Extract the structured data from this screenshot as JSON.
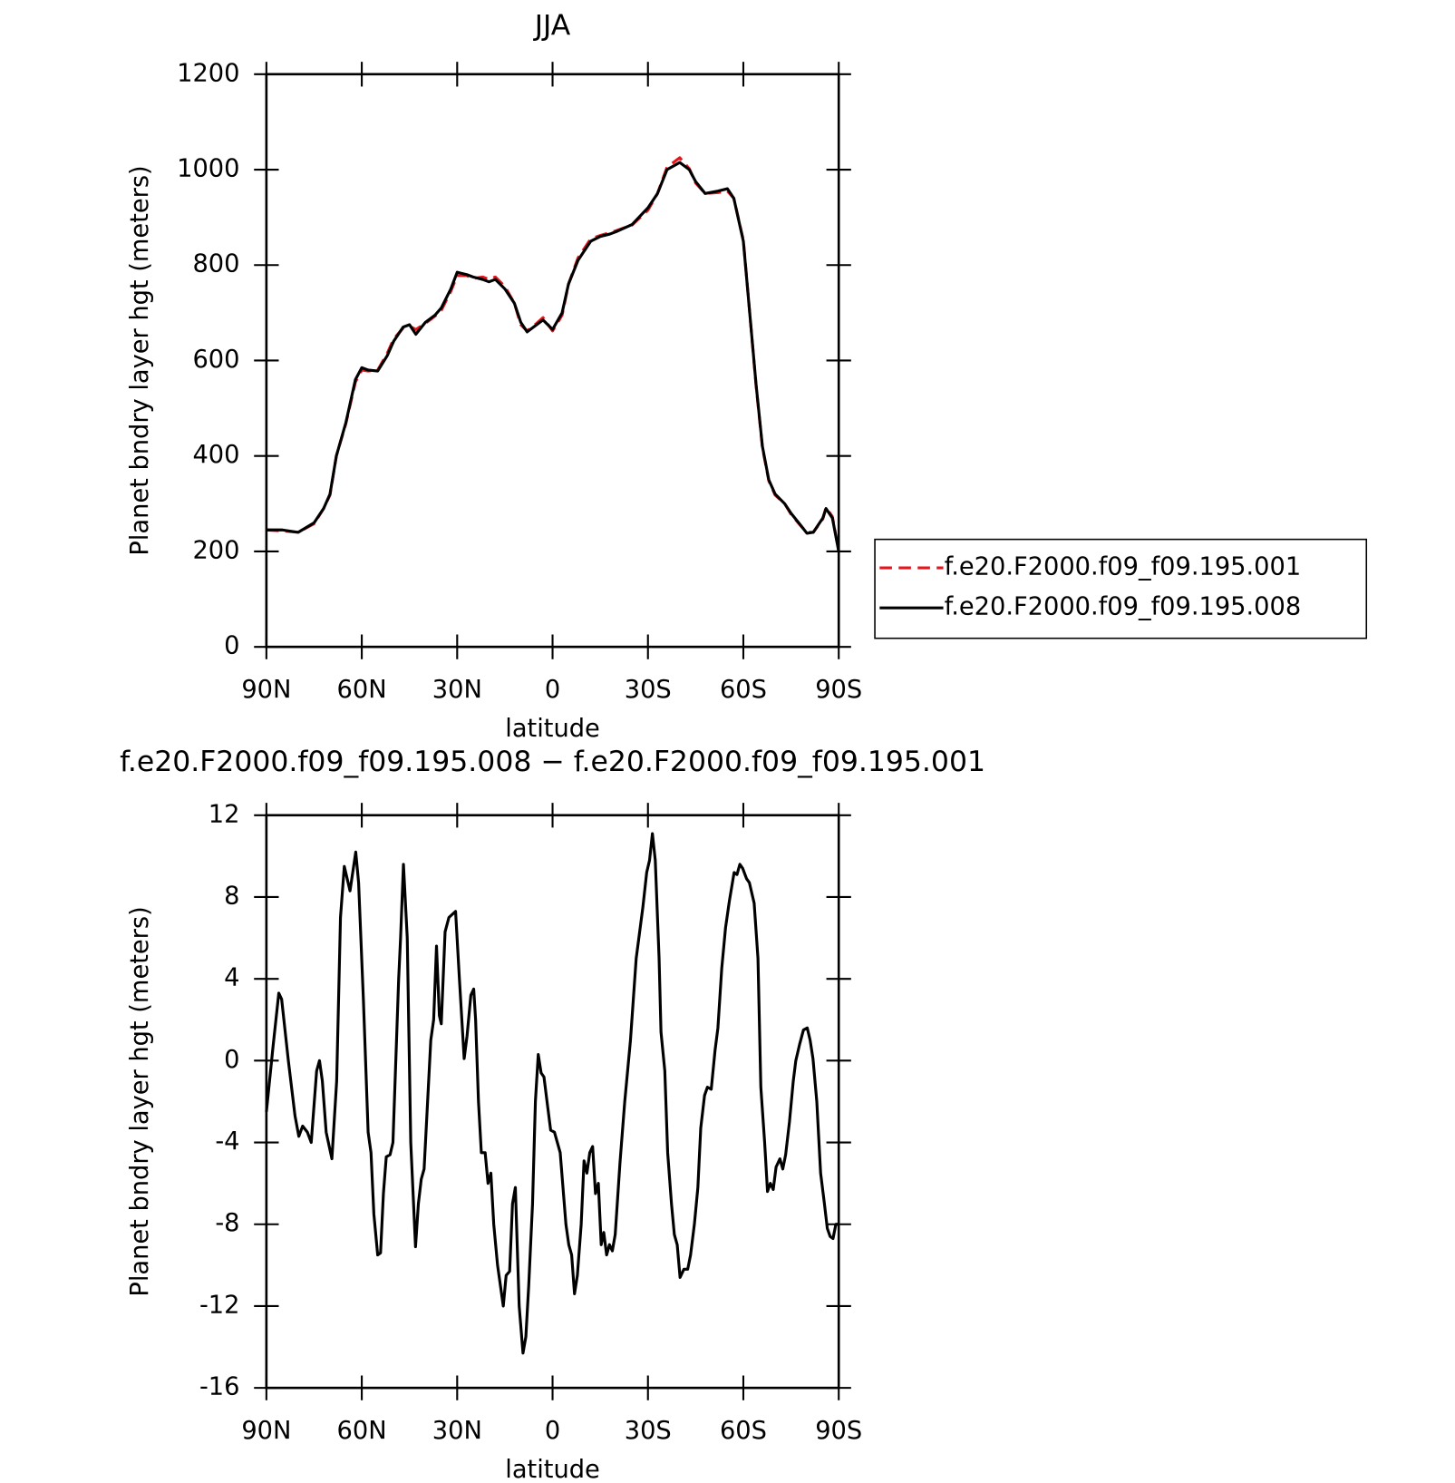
{
  "chart_data": [
    {
      "type": "line",
      "title": "JJA",
      "xlabel": "latitude",
      "ylabel": "Planet bndry layer hgt (meters)",
      "xlim": [
        90,
        -90
      ],
      "xticks": [
        {
          "value": 90,
          "label": "90N"
        },
        {
          "value": 60,
          "label": "60N"
        },
        {
          "value": 30,
          "label": "30N"
        },
        0,
        {
          "value": -30,
          "label": "30S"
        },
        {
          "value": -60,
          "label": "60S"
        },
        {
          "value": -90,
          "label": "90S"
        }
      ],
      "ylim": [
        0,
        1200
      ],
      "yticks": [
        0,
        200,
        400,
        600,
        800,
        1000,
        1200
      ],
      "legend": "right",
      "x": [
        90,
        85,
        80,
        75,
        72,
        70,
        68,
        65,
        62,
        60,
        58,
        55,
        52,
        50,
        47,
        45,
        43,
        40,
        37,
        35,
        32,
        30,
        27,
        25,
        22,
        20,
        18,
        15,
        12,
        10,
        8,
        5,
        3,
        0,
        -3,
        -5,
        -8,
        -12,
        -15,
        -18,
        -20,
        -25,
        -30,
        -33,
        -36,
        -40,
        -43,
        -45,
        -48,
        -52,
        -55,
        -57,
        -60,
        -62,
        -64,
        -66,
        -68,
        -70,
        -73,
        -75,
        -78,
        -80,
        -82,
        -85,
        -86,
        -88,
        -90
      ],
      "series": [
        {
          "name": "f.e20.F2000.f09_f09.195.001",
          "color": "#e8141b",
          "dashed": true,
          "values": [
            245,
            243,
            240,
            258,
            290,
            318,
            400,
            468,
            555,
            580,
            578,
            580,
            615,
            645,
            668,
            672,
            665,
            678,
            693,
            705,
            745,
            778,
            778,
            772,
            775,
            770,
            775,
            755,
            720,
            675,
            662,
            678,
            690,
            662,
            695,
            760,
            815,
            855,
            862,
            868,
            872,
            884,
            915,
            950,
            1005,
            1025,
            1002,
            972,
            950,
            952,
            955,
            940,
            852,
            700,
            548,
            418,
            348,
            318,
            300,
            278,
            254,
            240,
            240,
            268,
            292,
            273,
            200
          ]
        },
        {
          "name": "f.e20.F2000.f09_f09.195.008",
          "color": "#000000",
          "dashed": false,
          "values": [
            245,
            245,
            240,
            260,
            290,
            320,
            400,
            470,
            560,
            585,
            580,
            578,
            610,
            640,
            670,
            675,
            655,
            680,
            695,
            710,
            750,
            785,
            780,
            775,
            770,
            765,
            770,
            750,
            720,
            680,
            660,
            675,
            685,
            665,
            700,
            760,
            810,
            850,
            860,
            865,
            870,
            885,
            920,
            950,
            1000,
            1015,
            1000,
            975,
            950,
            955,
            960,
            940,
            850,
            700,
            550,
            420,
            350,
            320,
            300,
            280,
            255,
            238,
            240,
            270,
            290,
            270,
            200
          ]
        }
      ]
    },
    {
      "type": "line",
      "title": "f.e20.F2000.f09_f09.195.008 − f.e20.F2000.f09_f09.195.001",
      "xlabel": "latitude",
      "ylabel": "Planet bndry layer hgt (meters)",
      "xlim": [
        90,
        -90
      ],
      "xticks": [
        {
          "value": 90,
          "label": "90N"
        },
        {
          "value": 60,
          "label": "60N"
        },
        {
          "value": 30,
          "label": "30N"
        },
        0,
        {
          "value": -30,
          "label": "30S"
        },
        {
          "value": -60,
          "label": "60S"
        },
        {
          "value": -90,
          "label": "90S"
        }
      ],
      "ylim": [
        -16,
        12
      ],
      "yticks": [
        -16,
        -12,
        -8,
        -4,
        0,
        4,
        8,
        12
      ],
      "x": [
        90,
        87.9,
        86.1,
        85.2,
        83.1,
        81.0,
        79.8,
        78.6,
        77.1,
        75.9,
        74.2,
        73.3,
        72.4,
        71.2,
        69.4,
        67.9,
        66.7,
        65.5,
        63.7,
        61.9,
        61.0,
        59.5,
        58.0,
        57.1,
        56.2,
        55.0,
        54.1,
        53.2,
        52.3,
        51.1,
        50.2,
        48.4,
        47.8,
        46.9,
        45.7,
        44.6,
        43.1,
        42.2,
        41.3,
        40.4,
        38.3,
        37.4,
        36.5,
        35.6,
        35.0,
        33.8,
        32.6,
        30.5,
        29.3,
        27.8,
        26.9,
        25.7,
        24.8,
        24.2,
        23.3,
        22.4,
        21.2,
        20.3,
        19.4,
        18.5,
        17.3,
        16.4,
        15.5,
        14.6,
        13.5,
        12.6,
        11.7,
        10.5,
        9.3,
        8.4,
        7.5,
        6.3,
        5.4,
        4.5,
        3.6,
        2.7,
        1.5,
        0.6,
        -0.6,
        -2.4,
        -4.2,
        -5.1,
        -6.0,
        -6.9,
        -7.8,
        -9.0,
        -9.9,
        -10.8,
        -11.7,
        -12.6,
        -13.5,
        -14.4,
        -15.3,
        -16.1,
        -17.0,
        -17.9,
        -18.8,
        -19.7,
        -21.2,
        -22.7,
        -24.5,
        -26.3,
        -28.4,
        -29.6,
        -30.5,
        -31.4,
        -32.3,
        -33.5,
        -34.1,
        -35.3,
        -36.2,
        -37.4,
        -38.3,
        -39.2,
        -40.1,
        -41.3,
        -42.5,
        -43.4,
        -44.6,
        -45.7,
        -46.6,
        -47.8,
        -48.7,
        -49.9,
        -51.1,
        -52.0,
        -53.2,
        -54.4,
        -55.6,
        -57.1,
        -58.0,
        -58.9,
        -59.8,
        -61.0,
        -61.9,
        -63.4,
        -64.6,
        -65.5,
        -66.7,
        -67.6,
        -68.5,
        -69.4,
        -70.3,
        -71.5,
        -72.4,
        -73.3,
        -74.5,
        -75.7,
        -76.5,
        -77.7,
        -78.9,
        -80.1,
        -81.0,
        -81.9,
        -83.1,
        -84.3,
        -85.5,
        -86.4,
        -87.3,
        -88.2,
        -89.1,
        -90
      ],
      "series": [
        {
          "color": "#000000",
          "dashed": false,
          "values": [
            -2.5,
            0.7,
            3.3,
            3,
            0,
            -2.7,
            -3.7,
            -3.2,
            -3.5,
            -4,
            -0.5,
            0,
            -1,
            -3.5,
            -4.8,
            -1,
            7,
            9.5,
            8.3,
            10.2,
            8.7,
            3,
            -3.5,
            -4.5,
            -7.5,
            -9.5,
            -9.4,
            -6.5,
            -4.7,
            -4.6,
            -4,
            4,
            6,
            9.6,
            6,
            -4,
            -9.1,
            -7,
            -5.8,
            -5.3,
            1,
            2,
            5.6,
            2.2,
            1.8,
            6.3,
            7,
            7.3,
            4,
            0.1,
            1.2,
            3.2,
            3.5,
            2,
            -2,
            -4.5,
            -4.5,
            -6,
            -5.5,
            -8,
            -10,
            -11,
            -12,
            -10.5,
            -10.3,
            -7,
            -6.2,
            -12,
            -14.3,
            -13.5,
            -11,
            -7,
            -2,
            0.3,
            -0.6,
            -0.8,
            -2.3,
            -3.4,
            -3.5,
            -4.5,
            -8,
            -9,
            -9.5,
            -11.4,
            -10.5,
            -8,
            -4.9,
            -5.5,
            -4.5,
            -4.2,
            -6.5,
            -6,
            -9,
            -8.4,
            -9.5,
            -9,
            -9.3,
            -8.5,
            -5,
            -2,
            1,
            5,
            7.5,
            9.2,
            9.8,
            11.1,
            9.8,
            5,
            1.4,
            -0.5,
            -4.5,
            -7,
            -8.5,
            -9,
            -10.6,
            -10.2,
            -10.2,
            -9.5,
            -8,
            -6.2,
            -3.3,
            -1.7,
            -1.3,
            -1.4,
            0.5,
            1.6,
            4.5,
            6.5,
            7.8,
            9.2,
            9.1,
            9.6,
            9.4,
            8.9,
            8.7,
            7.7,
            5,
            -1.3,
            -4,
            -6.4,
            -6,
            -6.3,
            -5.2,
            -4.8,
            -5.3,
            -4.6,
            -3,
            -1,
            0,
            0.8,
            1.5,
            1.6,
            1,
            0.1,
            -2,
            -5.5,
            -7,
            -8.2,
            -8.6,
            -8.7,
            -8,
            -8
          ]
        }
      ]
    }
  ]
}
